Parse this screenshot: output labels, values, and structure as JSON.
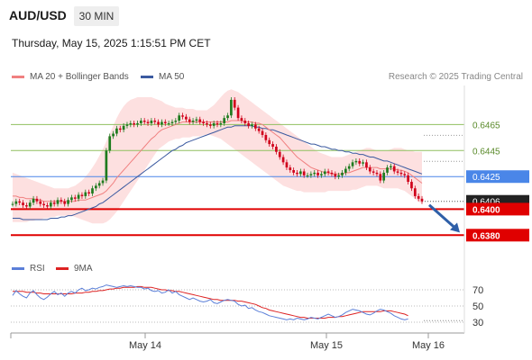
{
  "header": {
    "pair": "AUD/USD",
    "timeframe": "30 MIN",
    "datetime": "Thursday, May 15, 2025 1:15:51 PM CET"
  },
  "legend": {
    "ma20": "MA 20 + Bollinger Bands",
    "ma50": "MA 50",
    "rsi": "RSI",
    "rsi_ma": "9MA",
    "credit": "Research © 2025 Trading Central"
  },
  "colors": {
    "up": "#1e7b1e",
    "down": "#d0021b",
    "ma20": "#f08080",
    "ma50": "#3b5aa0",
    "band": "#fde0e0",
    "level_green": "#8fbf5f",
    "level_blue": "#4a86e8",
    "level_red": "#e00000",
    "rsi": "#5b7fd8",
    "rsi_ma": "#dd2222"
  },
  "chart_data": [
    {
      "type": "candlestick",
      "title": "AUD/USD 30 MIN",
      "x_ticks": [
        "May 14",
        "May 15",
        "May 16"
      ],
      "ylim": [
        0.6365,
        0.6495
      ],
      "price_ticks": [
        "0.6465",
        "0.6445",
        "0.6425",
        "0.6406",
        "0.6400",
        "0.6380"
      ],
      "levels": [
        {
          "label": "0.6465",
          "value": 0.6465,
          "kind": "resistance"
        },
        {
          "label": "0.6445",
          "value": 0.6445,
          "kind": "resistance"
        },
        {
          "label": "0.6425",
          "value": 0.6425,
          "kind": "pivot"
        },
        {
          "label": "0.6406",
          "value": 0.6406,
          "kind": "last"
        },
        {
          "label": "0.6400",
          "value": 0.64,
          "kind": "support"
        },
        {
          "label": "0.6380",
          "value": 0.638,
          "kind": "support"
        }
      ],
      "close": [
        0.6404,
        0.6406,
        0.6405,
        0.6403,
        0.6402,
        0.6405,
        0.6408,
        0.6406,
        0.6404,
        0.6403,
        0.6402,
        0.6405,
        0.6404,
        0.6407,
        0.6406,
        0.6404,
        0.6407,
        0.6409,
        0.6408,
        0.6411,
        0.641,
        0.6413,
        0.6412,
        0.6416,
        0.6418,
        0.642,
        0.6422,
        0.6445,
        0.6456,
        0.6458,
        0.6462,
        0.6461,
        0.6464,
        0.6465,
        0.6466,
        0.6465,
        0.6466,
        0.6468,
        0.6467,
        0.6466,
        0.6468,
        0.6467,
        0.6465,
        0.6467,
        0.6466,
        0.6466,
        0.6467,
        0.6468,
        0.6472,
        0.6471,
        0.6469,
        0.6467,
        0.6468,
        0.6469,
        0.6467,
        0.6466,
        0.6465,
        0.6464,
        0.6466,
        0.6465,
        0.6466,
        0.647,
        0.6472,
        0.6484,
        0.6478,
        0.647,
        0.6468,
        0.6466,
        0.6464,
        0.6465,
        0.6462,
        0.646,
        0.6457,
        0.6453,
        0.645,
        0.6448,
        0.6444,
        0.644,
        0.6436,
        0.6432,
        0.643,
        0.6428,
        0.6427,
        0.6429,
        0.6426,
        0.6426,
        0.6427,
        0.6428,
        0.6426,
        0.6427,
        0.6429,
        0.6428,
        0.6427,
        0.6425,
        0.6426,
        0.6428,
        0.6431,
        0.6433,
        0.6436,
        0.6437,
        0.6435,
        0.6436,
        0.6432,
        0.6429,
        0.6428,
        0.6427,
        0.6422,
        0.6428,
        0.6432,
        0.6433,
        0.6429,
        0.6428,
        0.6427,
        0.6426,
        0.6421,
        0.6416,
        0.641,
        0.6408,
        0.6406
      ],
      "ma20": [
        0.641,
        0.641,
        0.6409,
        0.6409,
        0.6408,
        0.6408,
        0.6408,
        0.6407,
        0.6407,
        0.6406,
        0.6406,
        0.6406,
        0.6406,
        0.6406,
        0.6406,
        0.6406,
        0.6406,
        0.6406,
        0.6406,
        0.6407,
        0.6407,
        0.6407,
        0.6408,
        0.6409,
        0.641,
        0.6411,
        0.6412,
        0.6414,
        0.6417,
        0.642,
        0.6424,
        0.6427,
        0.643,
        0.6433,
        0.6436,
        0.6439,
        0.6442,
        0.6445,
        0.6448,
        0.6451,
        0.6454,
        0.6456,
        0.6459,
        0.6461,
        0.6462,
        0.6463,
        0.6464,
        0.6465,
        0.6466,
        0.6467,
        0.6467,
        0.6467,
        0.6467,
        0.6467,
        0.6467,
        0.6467,
        0.6467,
        0.6467,
        0.6467,
        0.6467,
        0.6467,
        0.6467,
        0.6467,
        0.6468,
        0.6468,
        0.6468,
        0.6468,
        0.6467,
        0.6467,
        0.6467,
        0.6466,
        0.6466,
        0.6465,
        0.6463,
        0.6461,
        0.6459,
        0.6457,
        0.6455,
        0.6452,
        0.6449,
        0.6446,
        0.6443,
        0.644,
        0.6438,
        0.6436,
        0.6434,
        0.6432,
        0.6431,
        0.643,
        0.6429,
        0.6428,
        0.6428,
        0.6427,
        0.6427,
        0.6427,
        0.6427,
        0.6428,
        0.6428,
        0.6429,
        0.643,
        0.6431,
        0.6432,
        0.6432,
        0.6432,
        0.6432,
        0.6432,
        0.6431,
        0.6431,
        0.6431,
        0.6431,
        0.6431,
        0.643,
        0.643,
        0.6429,
        0.6428,
        0.6426,
        0.6424,
        0.6422,
        0.642
      ],
      "ma50": [
        0.6393,
        0.6393,
        0.6393,
        0.6392,
        0.6392,
        0.6392,
        0.6392,
        0.6392,
        0.6392,
        0.6392,
        0.6392,
        0.6393,
        0.6393,
        0.6393,
        0.6394,
        0.6394,
        0.6395,
        0.6395,
        0.6396,
        0.6397,
        0.6398,
        0.6399,
        0.64,
        0.6401,
        0.6402,
        0.6404,
        0.6405,
        0.6407,
        0.6409,
        0.6411,
        0.6413,
        0.6415,
        0.6417,
        0.6419,
        0.6421,
        0.6423,
        0.6425,
        0.6427,
        0.6429,
        0.6431,
        0.6433,
        0.6435,
        0.6437,
        0.6439,
        0.6441,
        0.6443,
        0.6445,
        0.6446,
        0.6448,
        0.6449,
        0.6451,
        0.6452,
        0.6453,
        0.6454,
        0.6455,
        0.6456,
        0.6457,
        0.6458,
        0.6459,
        0.646,
        0.6461,
        0.6462,
        0.6463,
        0.6463,
        0.6464,
        0.6464,
        0.6464,
        0.6464,
        0.6464,
        0.6464,
        0.6463,
        0.6463,
        0.6462,
        0.6462,
        0.6461,
        0.6461,
        0.646,
        0.6459,
        0.6458,
        0.6457,
        0.6456,
        0.6455,
        0.6454,
        0.6453,
        0.6452,
        0.6451,
        0.645,
        0.645,
        0.6449,
        0.6448,
        0.6448,
        0.6447,
        0.6446,
        0.6446,
        0.6445,
        0.6445,
        0.6444,
        0.6444,
        0.6443,
        0.6443,
        0.6442,
        0.6442,
        0.6441,
        0.644,
        0.644,
        0.6439,
        0.6438,
        0.6437,
        0.6437,
        0.6436,
        0.6435,
        0.6434,
        0.6433,
        0.6432,
        0.6431,
        0.643,
        0.6429,
        0.6428,
        0.6427
      ],
      "band_upper": [
        0.6428,
        0.6427,
        0.6426,
        0.6425,
        0.6424,
        0.6423,
        0.6422,
        0.6421,
        0.642,
        0.6419,
        0.6418,
        0.6417,
        0.6416,
        0.6416,
        0.6416,
        0.6416,
        0.6416,
        0.6417,
        0.6418,
        0.642,
        0.6422,
        0.6425,
        0.6428,
        0.6432,
        0.6436,
        0.6441,
        0.6446,
        0.6452,
        0.6458,
        0.6464,
        0.647,
        0.6475,
        0.6479,
        0.6482,
        0.6484,
        0.6485,
        0.6486,
        0.6486,
        0.6486,
        0.6486,
        0.6486,
        0.6485,
        0.6484,
        0.6483,
        0.6481,
        0.648,
        0.6479,
        0.6478,
        0.6478,
        0.6478,
        0.6477,
        0.6477,
        0.6477,
        0.6476,
        0.6476,
        0.6476,
        0.6476,
        0.6478,
        0.648,
        0.6483,
        0.6486,
        0.6489,
        0.6491,
        0.6492,
        0.6491,
        0.649,
        0.6488,
        0.6486,
        0.6484,
        0.6482,
        0.648,
        0.6478,
        0.6476,
        0.6474,
        0.6472,
        0.647,
        0.6468,
        0.6466,
        0.6464,
        0.6462,
        0.646,
        0.6458,
        0.6456,
        0.6454,
        0.6452,
        0.645,
        0.6448,
        0.6446,
        0.6444,
        0.6443,
        0.6442,
        0.6441,
        0.644,
        0.644,
        0.644,
        0.644,
        0.6441,
        0.6442,
        0.6443,
        0.6444,
        0.6445,
        0.6446,
        0.6447,
        0.6447,
        0.6446,
        0.6445,
        0.6445,
        0.6445,
        0.6445,
        0.6446,
        0.6447,
        0.6447,
        0.6447,
        0.6446,
        0.6445,
        0.6445,
        0.6444,
        0.6444,
        0.6444
      ],
      "band_lower": [
        0.639,
        0.639,
        0.639,
        0.639,
        0.639,
        0.6391,
        0.6391,
        0.6392,
        0.6392,
        0.6393,
        0.6393,
        0.6394,
        0.6394,
        0.6395,
        0.6395,
        0.6395,
        0.6395,
        0.6395,
        0.6394,
        0.6393,
        0.6392,
        0.6391,
        0.639,
        0.6389,
        0.6389,
        0.6389,
        0.6389,
        0.639,
        0.6392,
        0.6395,
        0.6398,
        0.6402,
        0.6406,
        0.641,
        0.6414,
        0.6418,
        0.6422,
        0.6426,
        0.643,
        0.6434,
        0.6438,
        0.6442,
        0.6446,
        0.6448,
        0.645,
        0.6452,
        0.6453,
        0.6454,
        0.6454,
        0.6455,
        0.6455,
        0.6455,
        0.6456,
        0.6456,
        0.6456,
        0.6457,
        0.6457,
        0.6457,
        0.6456,
        0.6455,
        0.6454,
        0.6452,
        0.645,
        0.6448,
        0.6446,
        0.6444,
        0.6442,
        0.644,
        0.6438,
        0.6436,
        0.6434,
        0.6432,
        0.643,
        0.6428,
        0.6426,
        0.6424,
        0.6422,
        0.642,
        0.6418,
        0.6417,
        0.6416,
        0.6415,
        0.6414,
        0.6414,
        0.6413,
        0.6413,
        0.6413,
        0.6413,
        0.6413,
        0.6413,
        0.6413,
        0.6414,
        0.6414,
        0.6414,
        0.6414,
        0.6414,
        0.6414,
        0.6414,
        0.6415,
        0.6415,
        0.6416,
        0.6417,
        0.6418,
        0.6418,
        0.6418,
        0.6418,
        0.6417,
        0.6416,
        0.6416,
        0.6416,
        0.6416,
        0.6416,
        0.6415,
        0.6414,
        0.6412,
        0.641,
        0.6408,
        0.6406,
        0.6404
      ]
    },
    {
      "type": "line",
      "title": "RSI",
      "ylim": [
        20,
        80
      ],
      "y_ticks": [
        "70",
        "50",
        "30"
      ],
      "series": [
        {
          "name": "RSI",
          "values": [
            63,
            69,
            65,
            62,
            60,
            66,
            69,
            64,
            60,
            58,
            61,
            65,
            68,
            64,
            66,
            62,
            66,
            68,
            66,
            70,
            72,
            69,
            70,
            72,
            71,
            73,
            74,
            76,
            75,
            74,
            73,
            74,
            75,
            74,
            75,
            74,
            73,
            73,
            71,
            72,
            69,
            68,
            69,
            66,
            67,
            70,
            66,
            68,
            64,
            62,
            60,
            58,
            60,
            58,
            56,
            55,
            56,
            58,
            54,
            53,
            55,
            57,
            58,
            57,
            56,
            52,
            50,
            51,
            47,
            48,
            45,
            43,
            42,
            40,
            38,
            37,
            36,
            35,
            34,
            33,
            34,
            33,
            35,
            34,
            33,
            34,
            36,
            35,
            34,
            36,
            38,
            40,
            38,
            36,
            37,
            39,
            42,
            44,
            46,
            45,
            44,
            42,
            40,
            39,
            41,
            44,
            46,
            45,
            43,
            41,
            38,
            36,
            34,
            33,
            34
          ]
        },
        {
          "name": "9MA",
          "values": [
            68,
            68,
            68,
            68,
            67,
            67,
            67,
            66,
            66,
            65,
            65,
            65,
            65,
            65,
            65,
            65,
            65,
            65,
            66,
            66,
            66,
            67,
            67,
            68,
            68,
            69,
            69,
            70,
            71,
            71,
            72,
            72,
            73,
            73,
            73,
            73,
            74,
            74,
            73,
            73,
            73,
            72,
            71,
            70,
            70,
            69,
            69,
            68,
            68,
            67,
            66,
            65,
            64,
            63,
            62,
            61,
            60,
            59,
            58,
            58,
            57,
            57,
            57,
            57,
            57,
            56,
            56,
            55,
            54,
            53,
            52,
            50,
            48,
            47,
            45,
            44,
            43,
            42,
            41,
            40,
            39,
            38,
            37,
            36,
            36,
            35,
            35,
            35,
            35,
            35,
            35,
            36,
            36,
            36,
            37,
            37,
            38,
            39,
            40,
            41,
            42,
            43,
            43,
            43,
            43,
            43,
            43,
            44,
            44,
            44,
            43,
            42,
            41,
            40,
            38
          ]
        }
      ]
    }
  ]
}
